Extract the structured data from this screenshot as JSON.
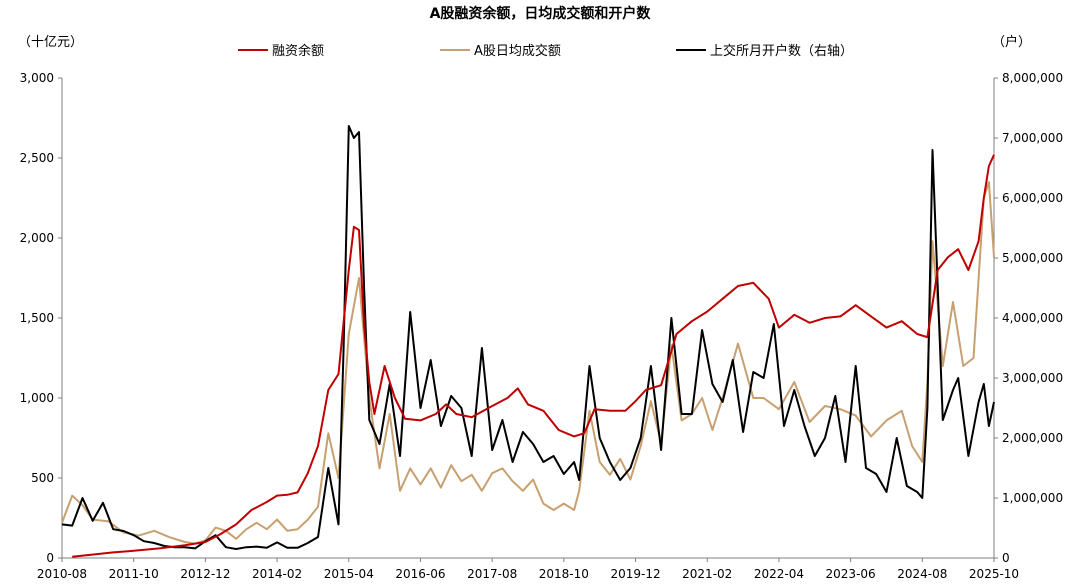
{
  "chart_data": {
    "type": "line",
    "title": "A股融资余额，日均成交额和开户数",
    "left_axis_unit": "（十亿元）",
    "right_axis_unit": "（户）",
    "ylim_left": [
      0,
      3000
    ],
    "yticks_left": [
      "0",
      "500",
      "1,000",
      "1,500",
      "2,000",
      "2,500",
      "3,000"
    ],
    "ylim_right": [
      0,
      8000000
    ],
    "yticks_right": [
      "0",
      "1,000,000",
      "2,000,000",
      "3,000,000",
      "4,000,000",
      "5,000,000",
      "6,000,000",
      "7,000,000",
      "8,000,000"
    ],
    "x_tick_labels": [
      "2010-08",
      "2011-10",
      "2012-12",
      "2014-02",
      "2015-04",
      "2016-06",
      "2017-08",
      "2018-10",
      "2019-12",
      "2021-02",
      "2022-04",
      "2023-06",
      "2024-08",
      "2025-10"
    ],
    "x_start": "2010-08",
    "x_end": "2025-10",
    "grid": false,
    "legend_position": "top",
    "series": [
      {
        "name": "融资余额",
        "axis": "left",
        "color": "#c00000",
        "points": [
          [
            "2010-10",
            8
          ],
          [
            "2011-01",
            18
          ],
          [
            "2011-06",
            35
          ],
          [
            "2011-10",
            45
          ],
          [
            "2012-03",
            60
          ],
          [
            "2012-08",
            80
          ],
          [
            "2012-12",
            100
          ],
          [
            "2013-03",
            150
          ],
          [
            "2013-06",
            210
          ],
          [
            "2013-09",
            300
          ],
          [
            "2013-12",
            350
          ],
          [
            "2014-02",
            390
          ],
          [
            "2014-04",
            395
          ],
          [
            "2014-06",
            410
          ],
          [
            "2014-08",
            530
          ],
          [
            "2014-10",
            700
          ],
          [
            "2014-12",
            1050
          ],
          [
            "2015-02",
            1150
          ],
          [
            "2015-04",
            1800
          ],
          [
            "2015-05",
            2070
          ],
          [
            "2015-06",
            2050
          ],
          [
            "2015-07",
            1450
          ],
          [
            "2015-08",
            1100
          ],
          [
            "2015-09",
            900
          ],
          [
            "2015-11",
            1200
          ],
          [
            "2016-01",
            1000
          ],
          [
            "2016-03",
            870
          ],
          [
            "2016-06",
            860
          ],
          [
            "2016-09",
            900
          ],
          [
            "2016-11",
            960
          ],
          [
            "2017-01",
            900
          ],
          [
            "2017-04",
            880
          ],
          [
            "2017-08",
            950
          ],
          [
            "2017-11",
            1000
          ],
          [
            "2018-01",
            1060
          ],
          [
            "2018-03",
            960
          ],
          [
            "2018-06",
            920
          ],
          [
            "2018-09",
            800
          ],
          [
            "2018-12",
            760
          ],
          [
            "2019-02",
            780
          ],
          [
            "2019-04",
            930
          ],
          [
            "2019-07",
            920
          ],
          [
            "2019-10",
            920
          ],
          [
            "2019-12",
            980
          ],
          [
            "2020-02",
            1050
          ],
          [
            "2020-05",
            1080
          ],
          [
            "2020-08",
            1400
          ],
          [
            "2020-11",
            1480
          ],
          [
            "2021-02",
            1540
          ],
          [
            "2021-05",
            1620
          ],
          [
            "2021-08",
            1700
          ],
          [
            "2021-11",
            1720
          ],
          [
            "2022-02",
            1620
          ],
          [
            "2022-04",
            1440
          ],
          [
            "2022-07",
            1520
          ],
          [
            "2022-10",
            1470
          ],
          [
            "2023-01",
            1500
          ],
          [
            "2023-04",
            1510
          ],
          [
            "2023-07",
            1580
          ],
          [
            "2023-10",
            1510
          ],
          [
            "2024-01",
            1440
          ],
          [
            "2024-04",
            1480
          ],
          [
            "2024-07",
            1400
          ],
          [
            "2024-09",
            1380
          ],
          [
            "2024-11",
            1800
          ],
          [
            "2025-01",
            1880
          ],
          [
            "2025-03",
            1930
          ],
          [
            "2025-05",
            1800
          ],
          [
            "2025-07",
            1980
          ],
          [
            "2025-08",
            2250
          ],
          [
            "2025-09",
            2450
          ],
          [
            "2025-10",
            2520
          ]
        ]
      },
      {
        "name": "A股日均成交额",
        "axis": "left",
        "color": "#c8a070",
        "points": [
          [
            "2010-08",
            220
          ],
          [
            "2010-10",
            390
          ],
          [
            "2010-12",
            330
          ],
          [
            "2011-02",
            240
          ],
          [
            "2011-05",
            230
          ],
          [
            "2011-08",
            160
          ],
          [
            "2011-11",
            140
          ],
          [
            "2012-02",
            170
          ],
          [
            "2012-05",
            130
          ],
          [
            "2012-08",
            100
          ],
          [
            "2012-10",
            90
          ],
          [
            "2012-12",
            110
          ],
          [
            "2013-02",
            190
          ],
          [
            "2013-04",
            170
          ],
          [
            "2013-06",
            120
          ],
          [
            "2013-08",
            180
          ],
          [
            "2013-10",
            220
          ],
          [
            "2013-12",
            180
          ],
          [
            "2014-02",
            240
          ],
          [
            "2014-04",
            170
          ],
          [
            "2014-06",
            180
          ],
          [
            "2014-08",
            240
          ],
          [
            "2014-10",
            320
          ],
          [
            "2014-12",
            780
          ],
          [
            "2015-02",
            500
          ],
          [
            "2015-04",
            1400
          ],
          [
            "2015-06",
            1750
          ],
          [
            "2015-08",
            1000
          ],
          [
            "2015-10",
            560
          ],
          [
            "2015-12",
            900
          ],
          [
            "2016-02",
            420
          ],
          [
            "2016-04",
            560
          ],
          [
            "2016-06",
            460
          ],
          [
            "2016-08",
            560
          ],
          [
            "2016-10",
            440
          ],
          [
            "2016-12",
            580
          ],
          [
            "2017-02",
            480
          ],
          [
            "2017-04",
            520
          ],
          [
            "2017-06",
            420
          ],
          [
            "2017-08",
            530
          ],
          [
            "2017-10",
            560
          ],
          [
            "2017-12",
            480
          ],
          [
            "2018-02",
            420
          ],
          [
            "2018-04",
            490
          ],
          [
            "2018-06",
            340
          ],
          [
            "2018-08",
            300
          ],
          [
            "2018-10",
            340
          ],
          [
            "2018-12",
            300
          ],
          [
            "2019-01",
            420
          ],
          [
            "2019-03",
            920
          ],
          [
            "2019-05",
            600
          ],
          [
            "2019-07",
            520
          ],
          [
            "2019-09",
            620
          ],
          [
            "2019-11",
            490
          ],
          [
            "2020-01",
            700
          ],
          [
            "2020-03",
            980
          ],
          [
            "2020-05",
            720
          ],
          [
            "2020-07",
            1330
          ],
          [
            "2020-09",
            860
          ],
          [
            "2020-11",
            900
          ],
          [
            "2021-01",
            1000
          ],
          [
            "2021-03",
            800
          ],
          [
            "2021-05",
            1000
          ],
          [
            "2021-08",
            1340
          ],
          [
            "2021-11",
            1000
          ],
          [
            "2022-01",
            1000
          ],
          [
            "2022-04",
            930
          ],
          [
            "2022-07",
            1100
          ],
          [
            "2022-10",
            850
          ],
          [
            "2023-01",
            950
          ],
          [
            "2023-04",
            930
          ],
          [
            "2023-07",
            890
          ],
          [
            "2023-10",
            760
          ],
          [
            "2024-01",
            860
          ],
          [
            "2024-04",
            920
          ],
          [
            "2024-06",
            700
          ],
          [
            "2024-08",
            600
          ],
          [
            "2024-09",
            1100
          ],
          [
            "2024-10",
            1980
          ],
          [
            "2024-12",
            1200
          ],
          [
            "2025-02",
            1600
          ],
          [
            "2025-04",
            1200
          ],
          [
            "2025-06",
            1250
          ],
          [
            "2025-08",
            2250
          ],
          [
            "2025-09",
            2350
          ],
          [
            "2025-10",
            1880
          ]
        ]
      },
      {
        "name": "上交所月开户数（右轴）",
        "axis": "right",
        "color": "#000000",
        "points": [
          [
            "2010-08",
            560000
          ],
          [
            "2010-10",
            540000
          ],
          [
            "2010-12",
            1000000
          ],
          [
            "2011-02",
            620000
          ],
          [
            "2011-04",
            920000
          ],
          [
            "2011-06",
            480000
          ],
          [
            "2011-08",
            450000
          ],
          [
            "2011-10",
            380000
          ],
          [
            "2011-12",
            280000
          ],
          [
            "2012-02",
            250000
          ],
          [
            "2012-04",
            200000
          ],
          [
            "2012-06",
            180000
          ],
          [
            "2012-08",
            180000
          ],
          [
            "2012-10",
            160000
          ],
          [
            "2012-12",
            280000
          ],
          [
            "2013-02",
            380000
          ],
          [
            "2013-04",
            180000
          ],
          [
            "2013-06",
            150000
          ],
          [
            "2013-08",
            180000
          ],
          [
            "2013-10",
            190000
          ],
          [
            "2013-12",
            170000
          ],
          [
            "2014-02",
            260000
          ],
          [
            "2014-04",
            170000
          ],
          [
            "2014-06",
            170000
          ],
          [
            "2014-08",
            250000
          ],
          [
            "2014-10",
            350000
          ],
          [
            "2014-12",
            1500000
          ],
          [
            "2015-02",
            560000
          ],
          [
            "2015-03",
            3500000
          ],
          [
            "2015-04",
            7200000
          ],
          [
            "2015-05",
            7000000
          ],
          [
            "2015-06",
            7100000
          ],
          [
            "2015-07",
            4500000
          ],
          [
            "2015-08",
            2300000
          ],
          [
            "2015-10",
            1900000
          ],
          [
            "2015-12",
            2900000
          ],
          [
            "2016-02",
            1700000
          ],
          [
            "2016-04",
            4100000
          ],
          [
            "2016-06",
            2500000
          ],
          [
            "2016-08",
            3300000
          ],
          [
            "2016-10",
            2200000
          ],
          [
            "2016-12",
            2700000
          ],
          [
            "2017-02",
            2500000
          ],
          [
            "2017-04",
            1700000
          ],
          [
            "2017-06",
            3500000
          ],
          [
            "2017-08",
            1800000
          ],
          [
            "2017-10",
            2300000
          ],
          [
            "2017-12",
            1600000
          ],
          [
            "2018-02",
            2100000
          ],
          [
            "2018-04",
            1900000
          ],
          [
            "2018-06",
            1600000
          ],
          [
            "2018-08",
            1700000
          ],
          [
            "2018-10",
            1400000
          ],
          [
            "2018-12",
            1600000
          ],
          [
            "2019-01",
            1300000
          ],
          [
            "2019-03",
            3200000
          ],
          [
            "2019-05",
            2000000
          ],
          [
            "2019-07",
            1600000
          ],
          [
            "2019-09",
            1300000
          ],
          [
            "2019-11",
            1500000
          ],
          [
            "2020-01",
            2000000
          ],
          [
            "2020-03",
            3200000
          ],
          [
            "2020-05",
            1800000
          ],
          [
            "2020-07",
            4000000
          ],
          [
            "2020-09",
            2400000
          ],
          [
            "2020-11",
            2400000
          ],
          [
            "2021-01",
            3800000
          ],
          [
            "2021-03",
            2900000
          ],
          [
            "2021-05",
            2600000
          ],
          [
            "2021-07",
            3300000
          ],
          [
            "2021-09",
            2100000
          ],
          [
            "2021-11",
            3100000
          ],
          [
            "2022-01",
            3000000
          ],
          [
            "2022-03",
            3900000
          ],
          [
            "2022-05",
            2200000
          ],
          [
            "2022-07",
            2800000
          ],
          [
            "2022-09",
            2200000
          ],
          [
            "2022-11",
            1700000
          ],
          [
            "2023-01",
            2000000
          ],
          [
            "2023-03",
            2700000
          ],
          [
            "2023-05",
            1600000
          ],
          [
            "2023-07",
            3200000
          ],
          [
            "2023-09",
            1500000
          ],
          [
            "2023-11",
            1400000
          ],
          [
            "2024-01",
            1100000
          ],
          [
            "2024-03",
            2000000
          ],
          [
            "2024-05",
            1200000
          ],
          [
            "2024-07",
            1100000
          ],
          [
            "2024-08",
            1000000
          ],
          [
            "2024-09",
            2500000
          ],
          [
            "2024-10",
            6800000
          ],
          [
            "2024-12",
            2300000
          ],
          [
            "2025-02",
            2800000
          ],
          [
            "2025-03",
            3000000
          ],
          [
            "2025-05",
            1700000
          ],
          [
            "2025-07",
            2600000
          ],
          [
            "2025-08",
            2900000
          ],
          [
            "2025-09",
            2200000
          ],
          [
            "2025-10",
            2600000
          ]
        ]
      }
    ]
  }
}
